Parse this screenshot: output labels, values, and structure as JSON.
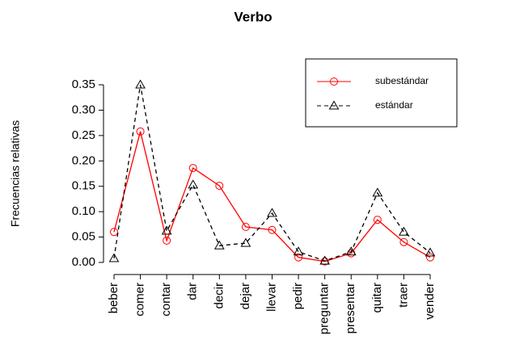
{
  "chart_data": {
    "type": "line",
    "title": "Verbo",
    "y_label": "Frecuencias relativas",
    "categories": [
      "beber",
      "comer",
      "contar",
      "dar",
      "decir",
      "dejar",
      "llevar",
      "pedir",
      "preguntar",
      "presentar",
      "quitar",
      "traer",
      "vender"
    ],
    "series": [
      {
        "name": "subestándar",
        "color": "#ff0000",
        "marker": "circle",
        "line_style": "solid",
        "values": [
          0.06,
          0.258,
          0.043,
          0.186,
          0.151,
          0.07,
          0.064,
          0.01,
          0.002,
          0.018,
          0.084,
          0.04,
          0.01
        ]
      },
      {
        "name": "estándar",
        "color": "#000000",
        "marker": "triangle",
        "line_style": "dashed",
        "values": [
          0.008,
          0.35,
          0.062,
          0.153,
          0.033,
          0.038,
          0.097,
          0.021,
          0.003,
          0.021,
          0.137,
          0.06,
          0.019
        ]
      }
    ],
    "ylim": [
      0,
      0.35
    ],
    "yticks": [
      {
        "value": 0,
        "label": "0.00"
      },
      {
        "value": 0.05,
        "label": "0.05"
      },
      {
        "value": 0.1,
        "label": "0.10"
      },
      {
        "value": 0.15,
        "label": "0.15"
      },
      {
        "value": 0.2,
        "label": "0.20"
      },
      {
        "value": 0.25,
        "label": "0.25"
      },
      {
        "value": 0.3,
        "label": "0.30"
      },
      {
        "value": 0.35,
        "label": "0.35"
      }
    ],
    "legend_position": "topright"
  }
}
